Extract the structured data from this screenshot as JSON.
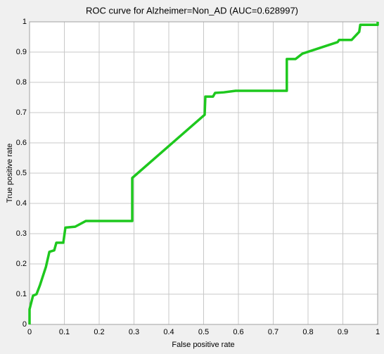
{
  "chart_data": {
    "type": "line",
    "title": "ROC curve for Alzheimer=Non_AD (AUC=0.628997)",
    "xlabel": "False positive rate",
    "ylabel": "True positive rate",
    "x": [
      0,
      0,
      0.01,
      0.02,
      0.03,
      0.047,
      0.057,
      0.071,
      0.077,
      0.097,
      0.103,
      0.131,
      0.162,
      0.295,
      0.295,
      0.503,
      0.505,
      0.527,
      0.533,
      0.558,
      0.592,
      0.739,
      0.739,
      0.764,
      0.784,
      0.885,
      0.889,
      0.925,
      0.947,
      0.95,
      1,
      1
    ],
    "series": [
      {
        "color": "#1ec81e",
        "values": [
          0,
          0.05,
          0.095,
          0.1,
          0.13,
          0.19,
          0.24,
          0.245,
          0.27,
          0.27,
          0.32,
          0.323,
          0.342,
          0.342,
          0.484,
          0.693,
          0.753,
          0.753,
          0.765,
          0.767,
          0.772,
          0.772,
          0.877,
          0.877,
          0.895,
          0.933,
          0.94,
          0.94,
          0.967,
          0.99,
          0.99,
          1
        ]
      }
    ],
    "xlim": [
      0,
      1
    ],
    "ylim": [
      0,
      1
    ],
    "xticks": [
      0,
      0.1,
      0.2,
      0.3,
      0.4,
      0.5,
      0.6,
      0.7,
      0.8,
      0.9,
      1
    ],
    "yticks": [
      0,
      0.1,
      0.2,
      0.3,
      0.4,
      0.5,
      0.6,
      0.7,
      0.8,
      0.9,
      1
    ],
    "grid": true
  }
}
